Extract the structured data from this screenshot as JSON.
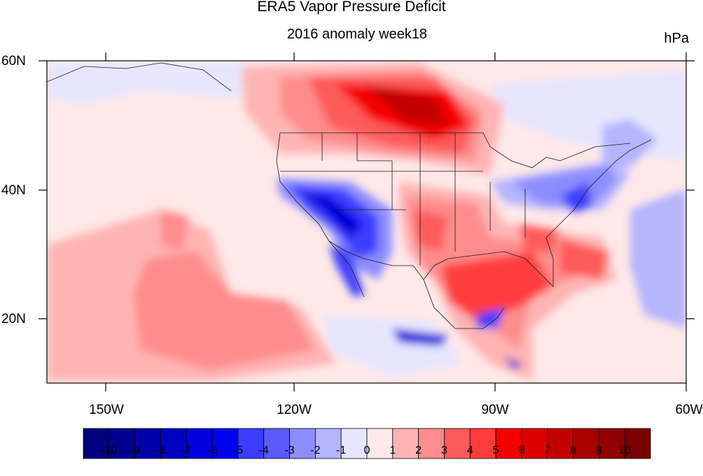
{
  "map": {
    "title": "ERA5 Vapor Pressure Deficit",
    "subtitle": "2016 anomaly week18",
    "units": "hPa",
    "lat_labels": [
      "60N",
      "40N",
      "20N"
    ],
    "lon_labels": [
      "150W",
      "120W",
      "90W",
      "60W"
    ]
  },
  "colorbar": {
    "labels": [
      "-10",
      "-9",
      "-8",
      "-7",
      "-6",
      "-5",
      "-4",
      "-3",
      "-2",
      "-1",
      "0",
      "1",
      "2",
      "3",
      "4",
      "5",
      "6",
      "7",
      "8",
      "9",
      "10"
    ],
    "colors": [
      "#000080",
      "#00008f",
      "#0000a8",
      "#0000c2",
      "#0000dc",
      "#0000f5",
      "#3c3cff",
      "#5a5aff",
      "#8c8cff",
      "#b4b4ff",
      "#e6e6ff",
      "#ffe8e8",
      "#ffb4b4",
      "#ff8c8c",
      "#ff5a5a",
      "#ff3c3c",
      "#f50000",
      "#dc0000",
      "#c20000",
      "#a80000",
      "#8f0000",
      "#780000"
    ]
  }
}
